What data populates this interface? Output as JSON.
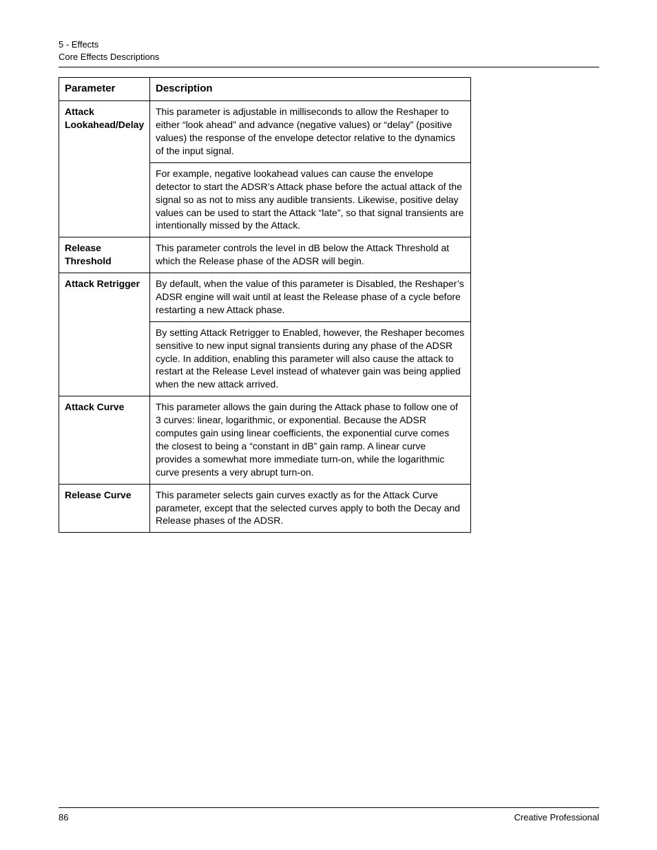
{
  "header": {
    "line1": "5 - Effects",
    "line2": "Core Effects Descriptions"
  },
  "table": {
    "columns": {
      "param": "Parameter",
      "desc": "Description"
    },
    "rows": [
      {
        "param": "Attack Lookahead/Delay",
        "desc": [
          "This parameter is adjustable in milliseconds to allow the Reshaper to either “look ahead” and advance (negative values) or “delay” (positive values) the response of the envelope detector relative to the dynamics of the input signal.",
          "For example, negative lookahead values can cause the envelope detector to start the ADSR’s Attack phase before the actual attack of the signal so as not to miss any audible transients. Likewise, positive delay values can be used to start the Attack “late”, so that signal transients are intentionally missed by the Attack."
        ]
      },
      {
        "param": "Release Threshold",
        "desc": [
          "This parameter controls the level in dB below the Attack Threshold at which the Release phase of the ADSR will begin."
        ]
      },
      {
        "param": "Attack Retrigger",
        "desc": [
          "By default, when the value of this parameter is Disabled, the Reshaper’s ADSR engine will wait until at least the Release phase of a cycle before restarting a new Attack phase.",
          "By setting Attack Retrigger to Enabled, however, the Reshaper becomes sensitive to new input signal transients during any phase of the ADSR cycle. In addition, enabling this parameter will also cause the attack to restart at the Release Level instead of whatever gain was being applied when the new attack arrived."
        ]
      },
      {
        "param": "Attack Curve",
        "desc": [
          "This parameter allows the gain during the Attack phase to follow one of 3 curves: linear, logarithmic, or exponential. Because the ADSR computes gain using linear coefficients, the exponential curve comes the closest to being a “constant in dB” gain ramp. A linear curve provides a somewhat more immediate turn-on, while the logarithmic curve presents a very abrupt turn-on."
        ]
      },
      {
        "param": "Release Curve",
        "desc": [
          "This parameter selects gain curves exactly as for the Attack Curve parameter, except that the selected curves apply to both the Decay and Release phases of the ADSR."
        ]
      }
    ]
  },
  "footer": {
    "page": "86",
    "brand": "Creative Professional"
  }
}
